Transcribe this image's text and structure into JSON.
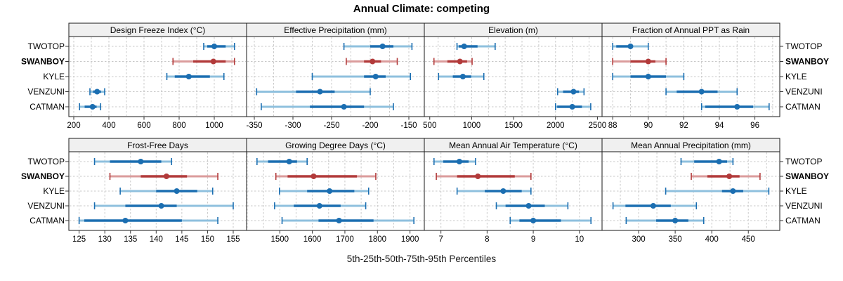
{
  "title": "Annual Climate: competing",
  "caption": "5th-25th-50th-75th-95th Percentiles",
  "stations": [
    "TWOTOP",
    "SWANBOY",
    "KYLE",
    "VENZUNI",
    "CATMAN"
  ],
  "highlighted_station": "SWANBOY",
  "colors": {
    "blue": "#1b6eb1",
    "blue_light": "#8fc0de",
    "red": "#b23a3a",
    "red_light": "#db9c9c",
    "grid": "#c9c9c9",
    "border": "#1a1a1a",
    "strip_bg": "#f0f0f0",
    "text": "#000000"
  },
  "chart_data": {
    "type": "dotplot-percentiles",
    "percentiles": [
      5,
      25,
      50,
      75,
      95
    ],
    "station_order": [
      "TWOTOP",
      "SWANBOY",
      "KYLE",
      "VENZUNI",
      "CATMAN"
    ],
    "panels": [
      {
        "title": "Design Freeze Index (°C)",
        "xlim": [
          172,
          1184
        ],
        "ticks": [
          200,
          400,
          600,
          800,
          1000
        ],
        "grid_step": 100,
        "values": {
          "TWOTOP": [
            940,
            960,
            1000,
            1065,
            1115
          ],
          "SWANBOY": [
            765,
            880,
            995,
            1065,
            1115
          ],
          "KYLE": [
            730,
            775,
            855,
            975,
            1055
          ],
          "VENZUNI": [
            292,
            310,
            333,
            355,
            376
          ],
          "CATMAN": [
            233,
            262,
            307,
            330,
            353
          ]
        }
      },
      {
        "title": "Effective Precipitation (mm)",
        "xlim": [
          -360,
          -130
        ],
        "ticks": [
          -350,
          -300,
          -250,
          -200,
          -150
        ],
        "grid_step": 25,
        "values": {
          "TWOTOP": [
            -234,
            -200,
            -184,
            -170,
            -146
          ],
          "SWANBOY": [
            -231,
            -208,
            -197,
            -186,
            -165
          ],
          "KYLE": [
            -275,
            -208,
            -193,
            -180,
            -148
          ],
          "VENZUNI": [
            -347,
            -296,
            -265,
            -246,
            -200
          ],
          "CATMAN": [
            -341,
            -278,
            -234,
            -208,
            -170
          ]
        }
      },
      {
        "title": "Elevation (m)",
        "xlim": [
          435,
          2555
        ],
        "ticks": [
          500,
          1000,
          1500,
          2000,
          2500
        ],
        "grid_step": 200,
        "values": {
          "TWOTOP": [
            825,
            845,
            910,
            1070,
            1280
          ],
          "SWANBOY": [
            550,
            710,
            860,
            945,
            1005
          ],
          "KYLE": [
            605,
            775,
            895,
            995,
            1145
          ],
          "VENZUNI": [
            2025,
            2090,
            2215,
            2280,
            2340
          ],
          "CATMAN": [
            2000,
            2020,
            2200,
            2315,
            2420
          ]
        }
      },
      {
        "title": "Fraction of Annual PPT as Rain",
        "xlim": [
          87.4,
          97.4
        ],
        "ticks": [
          88,
          90,
          92,
          94,
          96
        ],
        "grid_step": 1,
        "values": {
          "TWOTOP": [
            88,
            88.2,
            89,
            89.1,
            90
          ],
          "SWANBOY": [
            88,
            89,
            90,
            90.4,
            91
          ],
          "KYLE": [
            88,
            89,
            90,
            91,
            92
          ],
          "VENZUNI": [
            91,
            91.6,
            93,
            93.9,
            95
          ],
          "CATMAN": [
            93,
            93.2,
            95,
            95.9,
            96.8
          ]
        }
      },
      {
        "title": "Frost-Free Days",
        "xlim": [
          123,
          157.6
        ],
        "ticks": [
          125,
          130,
          135,
          140,
          145,
          150,
          155
        ],
        "grid_step": 5,
        "values": {
          "TWOTOP": [
            128,
            131,
            137,
            141,
            143
          ],
          "SWANBOY": [
            131,
            137,
            142,
            146,
            152
          ],
          "KYLE": [
            133,
            140,
            144,
            148,
            151
          ],
          "VENZUNI": [
            128,
            134,
            141,
            144,
            155
          ],
          "CATMAN": [
            125,
            126,
            134,
            145,
            152
          ]
        }
      },
      {
        "title": "Growing Degree Days (°C)",
        "xlim": [
          1398,
          1944
        ],
        "ticks": [
          1500,
          1600,
          1700,
          1800,
          1900
        ],
        "grid_step": 50,
        "values": {
          "TWOTOP": [
            1430,
            1464,
            1529,
            1553,
            1584
          ],
          "SWANBOY": [
            1488,
            1524,
            1604,
            1737,
            1795
          ],
          "KYLE": [
            1499,
            1584,
            1653,
            1729,
            1773
          ],
          "VENZUNI": [
            1484,
            1543,
            1622,
            1687,
            1764
          ],
          "CATMAN": [
            1507,
            1619,
            1682,
            1788,
            1912
          ]
        }
      },
      {
        "title": "Mean Annual Air Temperature (°C)",
        "xlim": [
          6.64,
          10.49
        ],
        "ticks": [
          7,
          8,
          9,
          10
        ],
        "grid_step": 0.5,
        "values": {
          "TWOTOP": [
            6.85,
            7.05,
            7.4,
            7.6,
            7.75
          ],
          "SWANBOY": [
            6.9,
            7.35,
            7.8,
            8.6,
            8.95
          ],
          "KYLE": [
            7.35,
            7.95,
            8.35,
            8.75,
            8.95
          ],
          "VENZUNI": [
            8.2,
            8.4,
            8.9,
            9.25,
            9.75
          ],
          "CATMAN": [
            8.5,
            8.7,
            9.0,
            9.6,
            10.25
          ]
        }
      },
      {
        "title": "Mean Annual Precipitation (mm)",
        "xlim": [
          250,
          493
        ],
        "ticks": [
          300,
          350,
          400,
          450
        ],
        "grid_step": 25,
        "values": {
          "TWOTOP": [
            358,
            376,
            410,
            421,
            429
          ],
          "SWANBOY": [
            372,
            394,
            424,
            438,
            466
          ],
          "KYLE": [
            337,
            414,
            429,
            443,
            478
          ],
          "VENZUNI": [
            265,
            282,
            320,
            344,
            379
          ],
          "CATMAN": [
            283,
            324,
            350,
            368,
            389
          ]
        }
      }
    ]
  }
}
